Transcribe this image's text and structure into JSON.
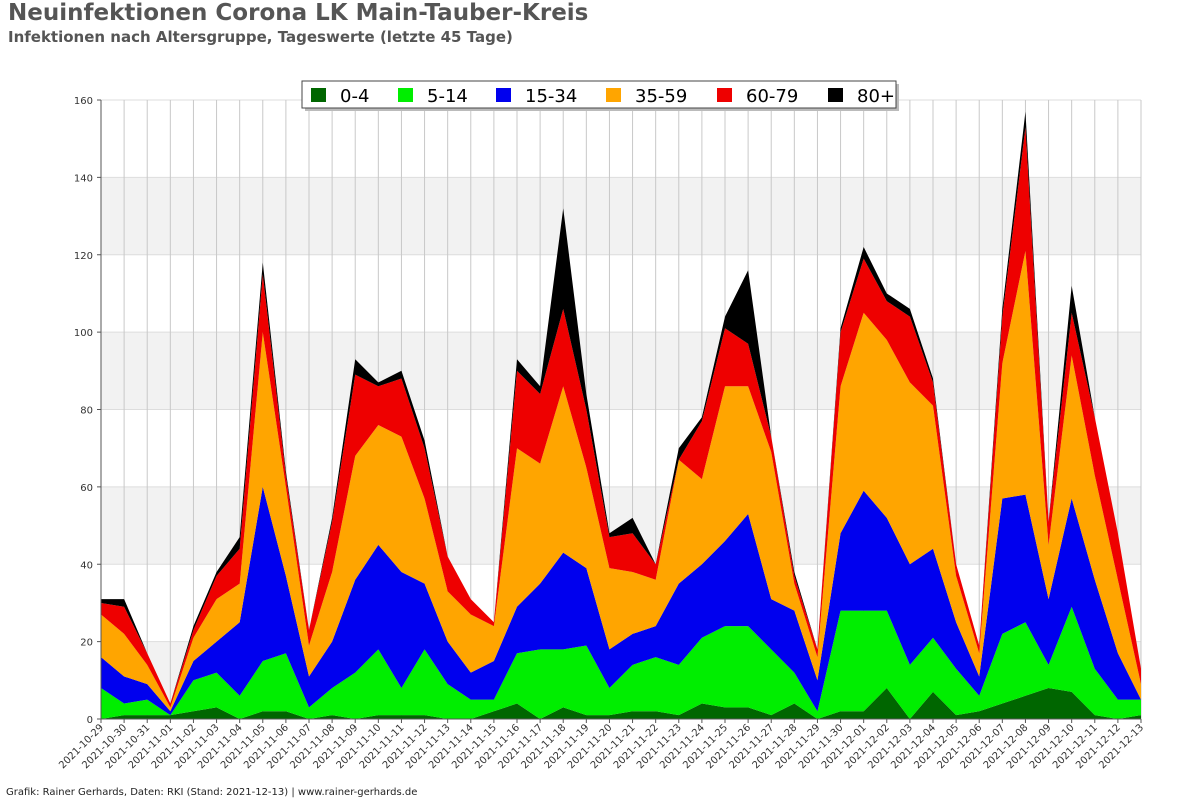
{
  "title": "Neuinfektionen Corona LK Main-Tauber-Kreis",
  "subtitle": "Infektionen nach Altersgruppe, Tageswerte (letzte 45 Tage)",
  "footer": "Grafik: Rainer Gerhards, Daten: RKI (Stand: 2021-12-13) | www.rainer-gerhards.de",
  "chart_data": {
    "type": "area",
    "stacked": true,
    "title": "Neuinfektionen Corona LK Main-Tauber-Kreis",
    "subtitle": "Infektionen nach Altersgruppe, Tageswerte (letzte 45 Tage)",
    "xlabel": "",
    "ylabel": "",
    "ylim": [
      0,
      160
    ],
    "yticks": [
      0,
      20,
      40,
      60,
      80,
      100,
      120,
      140,
      160
    ],
    "grid": true,
    "legend_position": "top",
    "x": [
      "2021-10-29",
      "2021-10-30",
      "2021-10-31",
      "2021-11-01",
      "2021-11-02",
      "2021-11-03",
      "2021-11-04",
      "2021-11-05",
      "2021-11-06",
      "2021-11-07",
      "2021-11-08",
      "2021-11-09",
      "2021-11-10",
      "2021-11-11",
      "2021-11-12",
      "2021-11-13",
      "2021-11-14",
      "2021-11-15",
      "2021-11-16",
      "2021-11-17",
      "2021-11-18",
      "2021-11-19",
      "2021-11-20",
      "2021-11-21",
      "2021-11-22",
      "2021-11-23",
      "2021-11-24",
      "2021-11-25",
      "2021-11-26",
      "2021-11-27",
      "2021-11-28",
      "2021-11-29",
      "2021-11-30",
      "2021-12-01",
      "2021-12-02",
      "2021-12-03",
      "2021-12-04",
      "2021-12-05",
      "2021-12-06",
      "2021-12-07",
      "2021-12-08",
      "2021-12-09",
      "2021-12-10",
      "2021-12-11",
      "2021-12-12",
      "2021-12-13"
    ],
    "series": [
      {
        "name": "0-4",
        "color": "#006600",
        "values": [
          0,
          1,
          1,
          1,
          2,
          3,
          0,
          2,
          2,
          0,
          1,
          0,
          1,
          1,
          1,
          0,
          0,
          2,
          4,
          0,
          3,
          1,
          1,
          2,
          2,
          1,
          4,
          3,
          3,
          1,
          4,
          0,
          2,
          2,
          8,
          0,
          7,
          1,
          2,
          4,
          6,
          8,
          7,
          1,
          0,
          1
        ]
      },
      {
        "name": "5-14",
        "color": "#00ee00",
        "values": [
          8,
          3,
          4,
          0,
          8,
          9,
          6,
          13,
          15,
          3,
          7,
          12,
          17,
          7,
          17,
          9,
          5,
          3,
          13,
          18,
          15,
          18,
          7,
          12,
          14,
          13,
          17,
          21,
          21,
          17,
          8,
          2,
          26,
          26,
          20,
          14,
          14,
          12,
          4,
          18,
          19,
          6,
          22,
          12,
          5,
          4
        ]
      },
      {
        "name": "15-34",
        "color": "#0000ee",
        "values": [
          8,
          7,
          4,
          1,
          5,
          8,
          19,
          45,
          20,
          8,
          12,
          24,
          27,
          30,
          17,
          11,
          7,
          10,
          12,
          17,
          25,
          20,
          10,
          8,
          8,
          21,
          19,
          22,
          29,
          13,
          16,
          8,
          20,
          31,
          24,
          26,
          23,
          12,
          5,
          35,
          33,
          17,
          28,
          23,
          12,
          0
        ]
      },
      {
        "name": "35-59",
        "color": "#ffa500",
        "values": [
          11,
          11,
          5,
          1,
          6,
          11,
          10,
          40,
          23,
          8,
          18,
          32,
          31,
          35,
          22,
          13,
          15,
          9,
          41,
          31,
          43,
          26,
          21,
          16,
          12,
          32,
          22,
          40,
          33,
          38,
          7,
          6,
          38,
          46,
          46,
          47,
          37,
          12,
          6,
          35,
          63,
          14,
          37,
          27,
          19,
          4
        ]
      },
      {
        "name": "60-79",
        "color": "#ee0000",
        "values": [
          3,
          7,
          3,
          1,
          2,
          6,
          9,
          15,
          3,
          4,
          13,
          21,
          10,
          15,
          13,
          9,
          4,
          1,
          20,
          18,
          20,
          15,
          8,
          10,
          4,
          0,
          15,
          15,
          11,
          4,
          2,
          2,
          14,
          14,
          10,
          17,
          6,
          3,
          2,
          12,
          32,
          6,
          11,
          15,
          12,
          4
        ]
      },
      {
        "name": "80+",
        "color": "#000000",
        "values": [
          1,
          2,
          0,
          0,
          1,
          1,
          3,
          3,
          1,
          0,
          1,
          4,
          1,
          2,
          2,
          0,
          0,
          0,
          3,
          2,
          26,
          4,
          1,
          4,
          0,
          3,
          1,
          3,
          19,
          0,
          1,
          0,
          1,
          3,
          2,
          2,
          1,
          0,
          0,
          2,
          4,
          0,
          7,
          0,
          0,
          0
        ]
      }
    ]
  }
}
